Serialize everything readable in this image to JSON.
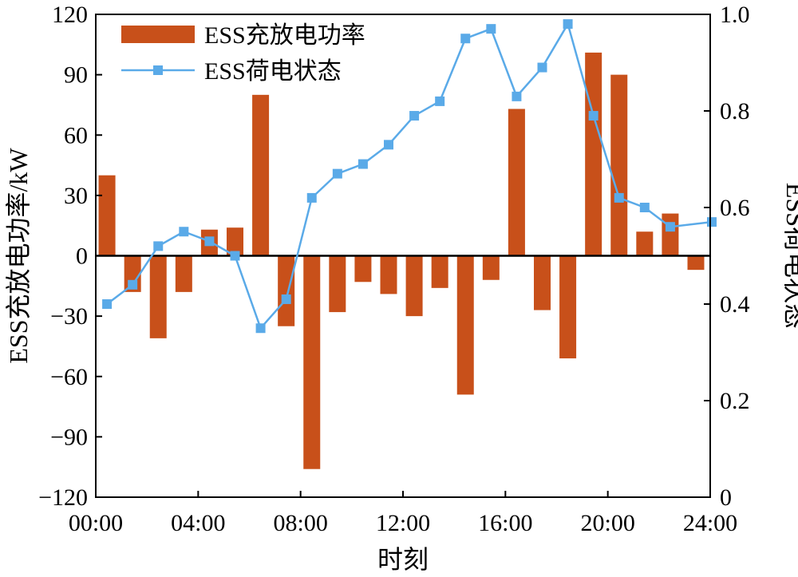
{
  "chart_data": {
    "type": "bar+line",
    "xlabel": "时刻",
    "ylabel_left": "ESS充放电功率/kW",
    "ylabel_right": "ESS荷电状态",
    "xlim": [
      0,
      24
    ],
    "ylim_left": [
      -120,
      120
    ],
    "ylim_right": [
      0,
      1.0
    ],
    "x_ticks": [
      "00:00",
      "04:00",
      "08:00",
      "12:00",
      "16:00",
      "20:00",
      "24:00"
    ],
    "y_ticks_left": [
      "120",
      "90",
      "60",
      "30",
      "0",
      "−30",
      "−60",
      "−90",
      "−120"
    ],
    "y_ticks_right": [
      "1.0",
      "0.8",
      "0.6",
      "0.4",
      "0.2",
      "0"
    ],
    "legend": {
      "position": "top-left",
      "bar_label": "ESS充放电功率",
      "line_label": "ESS荷电状态"
    },
    "colors": {
      "bar": "#C8501A",
      "line": "#5AAAE8",
      "marker": "#5AAAE8"
    },
    "grid": false,
    "series": [
      {
        "name": "ESS充放电功率",
        "kind": "bar",
        "axis": "left",
        "x": [
          1,
          2,
          3,
          4,
          5,
          6,
          7,
          8,
          9,
          10,
          11,
          12,
          13,
          14,
          15,
          16,
          17,
          18,
          19,
          20,
          21,
          22,
          23,
          24
        ],
        "values": [
          40,
          -18,
          -41,
          -18,
          13,
          14,
          80,
          -35,
          -106,
          -28,
          -13,
          -19,
          -30,
          -16,
          -69,
          -12,
          73,
          -27,
          -51,
          101,
          90,
          12,
          21,
          -7
        ]
      },
      {
        "name": "ESS荷电状态",
        "kind": "line",
        "axis": "right",
        "x": [
          1,
          2,
          3,
          4,
          5,
          6,
          7,
          8,
          9,
          10,
          11,
          12,
          13,
          14,
          15,
          16,
          17,
          18,
          19,
          20,
          21,
          22,
          23,
          24
        ],
        "values": [
          0.4,
          0.44,
          0.52,
          0.55,
          0.53,
          0.5,
          0.35,
          0.41,
          0.62,
          0.67,
          0.69,
          0.73,
          0.79,
          0.82,
          0.95,
          0.97,
          0.83,
          0.89,
          0.98,
          0.79,
          0.62,
          0.6,
          0.56,
          0.57
        ]
      }
    ]
  }
}
